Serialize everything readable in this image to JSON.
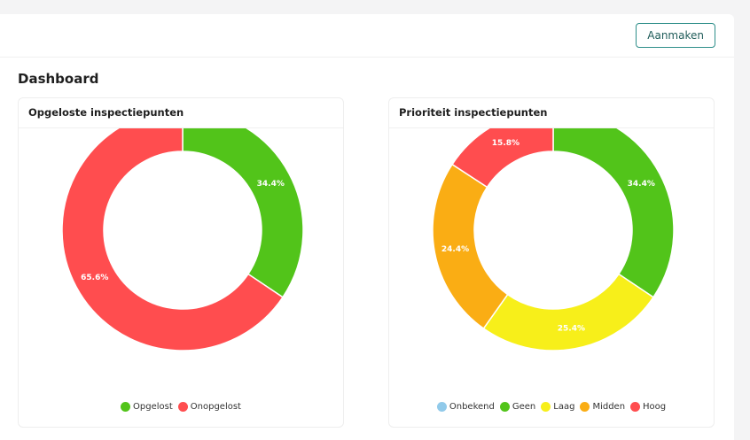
{
  "toolbar": {
    "create_label": "Aanmaken"
  },
  "dashboard": {
    "title": "Dashboard"
  },
  "chart_data": [
    {
      "type": "pie",
      "title": "Opgeloste inspectiepunten",
      "donut": true,
      "legend_position": "bottom",
      "categories": [
        "Opgelost",
        "Onopgelost"
      ],
      "values": [
        34.4,
        65.6
      ],
      "labels": [
        "34.4%",
        "65.6%"
      ],
      "colors": [
        "#52c41a",
        "#ff4d4f"
      ]
    },
    {
      "type": "pie",
      "title": "Prioriteit inspectiepunten",
      "donut": true,
      "legend_position": "bottom",
      "categories": [
        "Onbekend",
        "Geen",
        "Laag",
        "Midden",
        "Hoog"
      ],
      "values": [
        0,
        34.4,
        25.4,
        24.4,
        15.8
      ],
      "labels": [
        "",
        "34.4%",
        "25.4%",
        "24.4%",
        "15.8%"
      ],
      "colors": [
        "#91caea",
        "#52c41a",
        "#f7ef1a",
        "#faad14",
        "#ff4d4f"
      ]
    }
  ]
}
